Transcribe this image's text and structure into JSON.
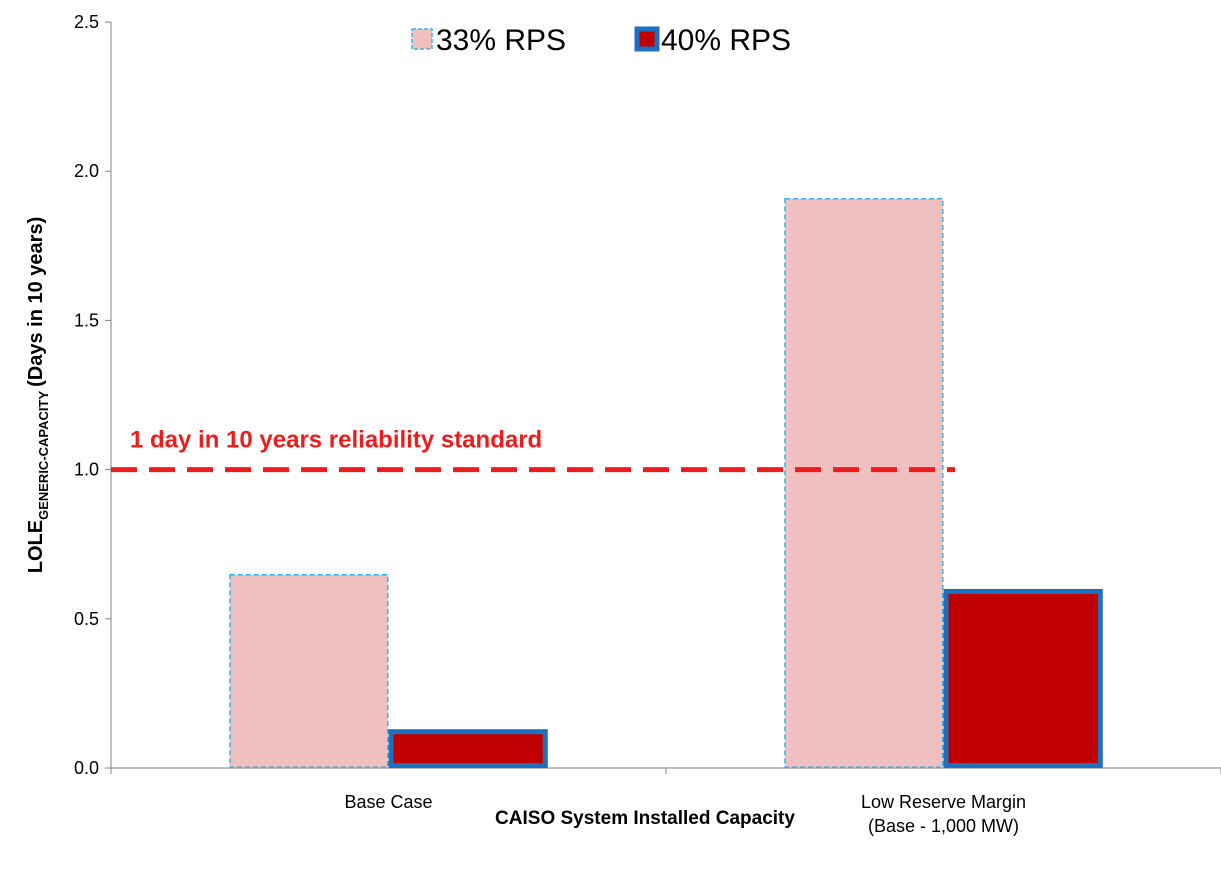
{
  "chart_data": {
    "type": "bar",
    "categories": [
      "Base Case",
      "Low Reserve Margin\n(Base - 1,000 MW)"
    ],
    "series": [
      {
        "name": "33% RPS",
        "color": "#efc0bf",
        "edge_color": "#33b5e5",
        "edge_style": "dashed",
        "values": [
          0.65,
          1.91
        ]
      },
      {
        "name": "40% RPS",
        "color": "#c00000",
        "edge_color": "#1f6fbf",
        "edge_style": "solid",
        "values": [
          0.13,
          0.6
        ]
      }
    ],
    "ylim": [
      0,
      2.5
    ],
    "yticks": [
      {
        "value": 0,
        "label": "0.0"
      },
      0.5,
      {
        "value": 1,
        "label": "1.0"
      },
      1.5,
      {
        "value": 2,
        "label": "2.0"
      },
      2.5
    ],
    "x_label": "CAISO System Installed Capacity",
    "y_label": {
      "main": "LOLE",
      "sub": "GENERIC-CAPACITY",
      "rest": "(Days in 10 years)"
    },
    "reference_line": {
      "value": 1,
      "label": "1 day in 10 years reliability standard",
      "color": "#ee1c1c"
    },
    "legend": "top"
  }
}
